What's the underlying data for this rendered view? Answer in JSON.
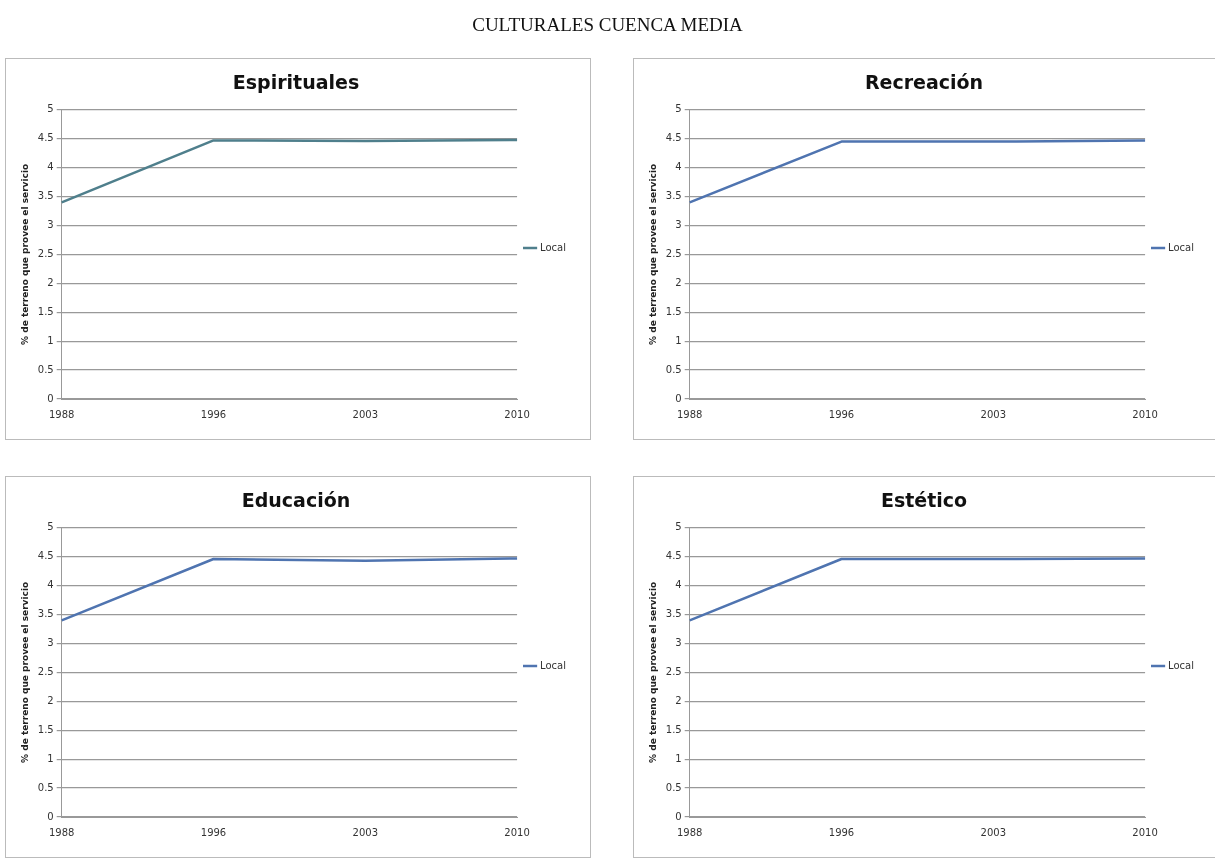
{
  "chart_data": [
    {
      "type": "line",
      "title": "Espirituales",
      "ylabel": "% de terreno que provee el servicio",
      "annotations": [
        "CULTURALES CUENCA MEDIA"
      ],
      "categories": [
        "1988",
        "1996",
        "2003",
        "2010"
      ],
      "series": [
        {
          "name": "Local",
          "color": "#4f7f8c",
          "values": [
            3.4,
            4.47,
            4.46,
            4.48
          ]
        }
      ],
      "ylim": [
        0,
        5
      ],
      "yticks": [
        0,
        0.5,
        1,
        1.5,
        2,
        2.5,
        3,
        3.5,
        4,
        4.5,
        5
      ],
      "grid": "y",
      "legend": "right"
    },
    {
      "type": "line",
      "title": "Recreación",
      "ylabel": "% de terreno que provee el servicio",
      "categories": [
        "1988",
        "1996",
        "2003",
        "2010"
      ],
      "series": [
        {
          "name": "Local",
          "color": "#4f74b0",
          "values": [
            3.4,
            4.45,
            4.45,
            4.47
          ]
        }
      ],
      "ylim": [
        0,
        5
      ],
      "yticks": [
        0,
        0.5,
        1,
        1.5,
        2,
        2.5,
        3,
        3.5,
        4,
        4.5,
        5
      ],
      "grid": "y",
      "legend": "right"
    },
    {
      "type": "line",
      "title": "Educación",
      "ylabel": "% de terreno que provee el servicio",
      "categories": [
        "1988",
        "1996",
        "2003",
        "2010"
      ],
      "series": [
        {
          "name": "Local",
          "color": "#4f74b0",
          "values": [
            3.4,
            4.46,
            4.43,
            4.47
          ]
        }
      ],
      "ylim": [
        0,
        5
      ],
      "yticks": [
        0,
        0.5,
        1,
        1.5,
        2,
        2.5,
        3,
        3.5,
        4,
        4.5,
        5
      ],
      "grid": "y",
      "legend": "right"
    },
    {
      "type": "line",
      "title": "Estético",
      "ylabel": "% de terreno que provee el servicio",
      "categories": [
        "1988",
        "1996",
        "2003",
        "2010"
      ],
      "series": [
        {
          "name": "Local",
          "color": "#4f74b0",
          "values": [
            3.4,
            4.46,
            4.46,
            4.47
          ]
        }
      ],
      "ylim": [
        0,
        5
      ],
      "yticks": [
        0,
        0.5,
        1,
        1.5,
        2,
        2.5,
        3,
        3.5,
        4,
        4.5,
        5
      ],
      "grid": "y",
      "legend": "right"
    }
  ]
}
